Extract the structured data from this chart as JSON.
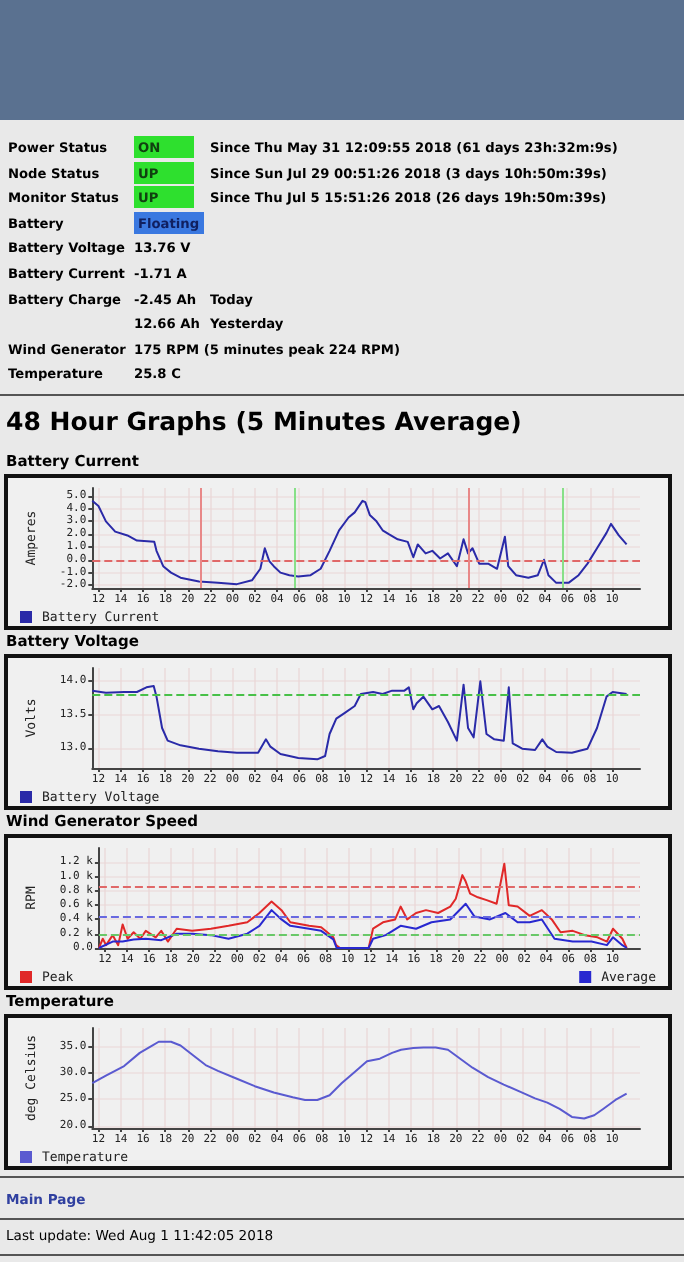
{
  "chart_data": [
    {
      "type": "other",
      "title": "48 Hour Graphs (5 Minutes Average)",
      "annotations": [
        "Power Status",
        "ON",
        "Since Thu May 31 12:09:55 2018 (61 days 23h:32m:9s)",
        "Node Status",
        "UP",
        "Since Sun Jul 29 00:51:26 2018 (3 days 10h:50m:39s)",
        "Monitor Status",
        "UP",
        "Since Thu Jul 5 15:51:26 2018 (26 days 19h:50m:39s)",
        "Battery",
        "Floating",
        "Battery Voltage",
        "13.76 V",
        "Battery Current",
        "-1.71 A",
        "Battery Charge",
        "-2.45 Ah",
        "Today",
        "12.66 Ah",
        "Yesterday",
        "Wind Generator",
        "175 RPM (5 minutes peak 224 RPM)",
        "Temperature",
        "25.8 C"
      ]
    },
    {
      "type": "line",
      "title": "Battery Current",
      "ylabel": "Amperes",
      "legend": "bottom",
      "grid": true,
      "xlim": [
        11.45,
        60.5
      ],
      "ylim": [
        -2.2,
        5.6
      ],
      "xticks": [
        {
          "value": 12,
          "label": "12"
        },
        {
          "value": 14,
          "label": "14"
        },
        {
          "value": 16,
          "label": "16"
        },
        {
          "value": 18,
          "label": "18"
        },
        {
          "value": 20,
          "label": "20"
        },
        {
          "value": 22,
          "label": "22"
        },
        {
          "value": 24,
          "label": "00"
        },
        {
          "value": 26,
          "label": "02"
        },
        {
          "value": 28,
          "label": "04"
        },
        {
          "value": 30,
          "label": "06"
        },
        {
          "value": 32,
          "label": "08"
        },
        {
          "value": 34,
          "label": "10"
        },
        {
          "value": 36,
          "label": "12"
        },
        {
          "value": 38,
          "label": "14"
        },
        {
          "value": 40,
          "label": "16"
        },
        {
          "value": 42,
          "label": "18"
        },
        {
          "value": 44,
          "label": "20"
        },
        {
          "value": 46,
          "label": "22"
        },
        {
          "value": 48,
          "label": "00"
        },
        {
          "value": 50,
          "label": "02"
        },
        {
          "value": 52,
          "label": "04"
        },
        {
          "value": 54,
          "label": "06"
        },
        {
          "value": 56,
          "label": "08"
        },
        {
          "value": 58,
          "label": "10"
        }
      ],
      "yticks": [
        {
          "value": -2,
          "label": "-2.0"
        },
        {
          "value": -1,
          "label": "-1.0"
        },
        {
          "value": 0,
          "label": "0.0"
        },
        {
          "value": 1,
          "label": "1.0"
        },
        {
          "value": 2,
          "label": "2.0"
        },
        {
          "value": 3,
          "label": "3.0"
        },
        {
          "value": 4,
          "label": "4.0"
        },
        {
          "value": 5,
          "label": "5.0"
        }
      ],
      "ref_lines": [
        {
          "axis": "y",
          "value": 0,
          "color": "#e06868",
          "line_style": "dashed"
        },
        {
          "axis": "x",
          "value": 21.2,
          "color": "#e88888",
          "line_style": "solid"
        },
        {
          "axis": "x",
          "value": 29.5,
          "color": "#88e088",
          "line_style": "solid"
        },
        {
          "axis": "x",
          "value": 45.1,
          "color": "#e88888",
          "line_style": "solid"
        },
        {
          "axis": "x",
          "value": 53.6,
          "color": "#88e088",
          "line_style": "solid"
        }
      ],
      "series": [
        {
          "name": "Battery Current",
          "color": "#2a2aa8",
          "x": [
            11.45,
            12,
            12.67,
            13.5,
            14.6,
            15.45,
            17,
            17.2,
            17.8,
            18.5,
            19.35,
            21,
            22.7,
            24.4,
            25.75,
            26.5,
            26.9,
            27.3,
            27.7,
            28.3,
            29.1,
            29.9,
            31,
            31.9,
            32.7,
            33.55,
            34.4,
            34.95,
            35.65,
            35.9,
            36.3,
            36.9,
            37.45,
            38,
            38.8,
            39.7,
            40.2,
            40.6,
            41.3,
            41.9,
            42.6,
            43.3,
            44.1,
            44.7,
            45.1,
            45.5,
            46.1,
            46.9,
            47.7,
            48.4,
            48.7,
            49.4,
            50.5,
            51.35,
            51.9,
            52.3,
            53,
            54.1,
            55,
            55.8,
            56.65,
            57.5,
            57.9,
            58.6,
            59.3
          ],
          "values": [
            4.6,
            4.2,
            3.0,
            2.2,
            1.9,
            1.5,
            1.4,
            0.7,
            -0.5,
            -1.0,
            -1.4,
            -1.7,
            -1.8,
            -1.9,
            -1.6,
            -0.7,
            0.9,
            -0.1,
            -0.5,
            -1.0,
            -1.2,
            -1.3,
            -1.2,
            -0.7,
            0.7,
            2.3,
            3.3,
            3.7,
            4.6,
            4.5,
            3.5,
            3.0,
            2.3,
            2.0,
            1.6,
            1.4,
            0.2,
            1.2,
            0.5,
            0.7,
            0.1,
            0.5,
            -0.5,
            1.6,
            0.5,
            0.9,
            -0.3,
            -0.3,
            -0.7,
            1.8,
            -0.5,
            -1.2,
            -1.4,
            -1.2,
            0.0,
            -1.2,
            -1.8,
            -1.8,
            -1.2,
            -0.3,
            0.9,
            2.1,
            2.8,
            1.9,
            1.2
          ]
        }
      ]
    },
    {
      "type": "line",
      "title": "Battery Voltage",
      "ylabel": "Volts",
      "legend": "bottom",
      "grid": true,
      "xlim": [
        11.45,
        60.5
      ],
      "ylim": [
        12.7,
        14.2
      ],
      "xticks": [
        {
          "value": 12,
          "label": "12"
        },
        {
          "value": 14,
          "label": "14"
        },
        {
          "value": 16,
          "label": "16"
        },
        {
          "value": 18,
          "label": "18"
        },
        {
          "value": 20,
          "label": "20"
        },
        {
          "value": 22,
          "label": "22"
        },
        {
          "value": 24,
          "label": "00"
        },
        {
          "value": 26,
          "label": "02"
        },
        {
          "value": 28,
          "label": "04"
        },
        {
          "value": 30,
          "label": "06"
        },
        {
          "value": 32,
          "label": "08"
        },
        {
          "value": 34,
          "label": "10"
        },
        {
          "value": 36,
          "label": "12"
        },
        {
          "value": 38,
          "label": "14"
        },
        {
          "value": 40,
          "label": "16"
        },
        {
          "value": 42,
          "label": "18"
        },
        {
          "value": 44,
          "label": "20"
        },
        {
          "value": 46,
          "label": "22"
        },
        {
          "value": 48,
          "label": "00"
        },
        {
          "value": 50,
          "label": "02"
        },
        {
          "value": 52,
          "label": "04"
        },
        {
          "value": 54,
          "label": "06"
        },
        {
          "value": 56,
          "label": "08"
        },
        {
          "value": 58,
          "label": "10"
        }
      ],
      "yticks": [
        {
          "value": 13,
          "label": "13.0"
        },
        {
          "value": 13.5,
          "label": "13.5"
        },
        {
          "value": 14,
          "label": "14.0"
        }
      ],
      "ref_lines": [
        {
          "axis": "y",
          "value": 13.8,
          "color": "#48c048",
          "line_style": "dashed"
        }
      ],
      "series": [
        {
          "name": "Battery Voltage",
          "color": "#2a2aa8",
          "x": [
            11.45,
            12.67,
            14.3,
            15.45,
            16.3,
            16.95,
            17.2,
            17.7,
            18.2,
            19.35,
            21,
            22.7,
            24.4,
            26.3,
            27,
            27.4,
            28.3,
            29.9,
            31.6,
            32.3,
            32.7,
            33.3,
            34.1,
            34.95,
            35.5,
            36.6,
            37.45,
            38.3,
            39.4,
            39.8,
            40.2,
            40.5,
            41.1,
            41.9,
            42.5,
            43.3,
            44.1,
            44.7,
            45.1,
            45.6,
            46.2,
            46.75,
            47.45,
            48.3,
            48.75,
            49.1,
            49.95,
            51.1,
            51.75,
            52.2,
            53,
            54.4,
            55.8,
            56.65,
            57.5,
            58.05,
            59.3
          ],
          "values": [
            13.86,
            13.83,
            13.84,
            13.84,
            13.91,
            13.93,
            13.77,
            13.3,
            13.11,
            13.04,
            12.99,
            12.95,
            12.93,
            12.93,
            13.13,
            13.02,
            12.91,
            12.85,
            12.83,
            12.88,
            13.21,
            13.44,
            13.53,
            13.63,
            13.81,
            13.84,
            13.81,
            13.86,
            13.86,
            13.91,
            13.58,
            13.67,
            13.77,
            13.58,
            13.63,
            13.39,
            13.11,
            13.95,
            13.3,
            13.16,
            14.0,
            13.21,
            13.13,
            13.11,
            13.91,
            13.07,
            12.99,
            12.97,
            13.13,
            13.02,
            12.94,
            12.93,
            12.99,
            13.3,
            13.77,
            13.84,
            13.81
          ]
        }
      ]
    },
    {
      "type": "line",
      "title": "Wind Generator Speed",
      "ylabel": "RPM",
      "legend": "bottom",
      "grid": true,
      "xlim": [
        11.45,
        60.5
      ],
      "ylim": [
        0,
        1400
      ],
      "xticks": [
        {
          "value": 12,
          "label": "12"
        },
        {
          "value": 14,
          "label": "14"
        },
        {
          "value": 16,
          "label": "16"
        },
        {
          "value": 18,
          "label": "18"
        },
        {
          "value": 20,
          "label": "20"
        },
        {
          "value": 22,
          "label": "22"
        },
        {
          "value": 24,
          "label": "00"
        },
        {
          "value": 26,
          "label": "02"
        },
        {
          "value": 28,
          "label": "04"
        },
        {
          "value": 30,
          "label": "06"
        },
        {
          "value": 32,
          "label": "08"
        },
        {
          "value": 34,
          "label": "10"
        },
        {
          "value": 36,
          "label": "12"
        },
        {
          "value": 38,
          "label": "14"
        },
        {
          "value": 40,
          "label": "16"
        },
        {
          "value": 42,
          "label": "18"
        },
        {
          "value": 44,
          "label": "20"
        },
        {
          "value": 46,
          "label": "22"
        },
        {
          "value": 48,
          "label": "00"
        },
        {
          "value": 50,
          "label": "02"
        },
        {
          "value": 52,
          "label": "04"
        },
        {
          "value": 54,
          "label": "06"
        },
        {
          "value": 56,
          "label": "08"
        },
        {
          "value": 58,
          "label": "10"
        }
      ],
      "yticks": [
        {
          "value": 0,
          "label": "0.0"
        },
        {
          "value": 200,
          "label": "0.2 k"
        },
        {
          "value": 400,
          "label": "0.4 k"
        },
        {
          "value": 600,
          "label": "0.6 k"
        },
        {
          "value": 800,
          "label": "0.8 k"
        },
        {
          "value": 1000,
          "label": "1.0 k"
        },
        {
          "value": 1200,
          "label": "1.2 k"
        }
      ],
      "ref_lines": [
        {
          "axis": "y",
          "value": 870,
          "color": "#e06868",
          "line_style": "dashed"
        },
        {
          "axis": "y",
          "value": 430,
          "color": "#6868e0",
          "line_style": "dashed"
        },
        {
          "axis": "y",
          "value": 200,
          "color": "#68c868",
          "line_style": "dashed"
        }
      ],
      "series": [
        {
          "name": "Peak",
          "color": "#e02828",
          "x": [
            11.45,
            11.8,
            12.1,
            12.7,
            13.2,
            13.6,
            14.05,
            14.6,
            15.2,
            15.7,
            16.6,
            17.1,
            17.7,
            18.5,
            19.9,
            21.6,
            23.2,
            24.9,
            26,
            27.1,
            28,
            28.8,
            30.5,
            31.6,
            32.7,
            32.95,
            33.3,
            35.9,
            36.3,
            37.2,
            38.3,
            38.8,
            39.4,
            40.2,
            41.1,
            42.2,
            43.3,
            43.8,
            44.4,
            44.7,
            45.1,
            45.8,
            46.6,
            47.5,
            48.2,
            48.6,
            49.4,
            50.5,
            51.6,
            52.5,
            53.3,
            54.4,
            55.5,
            56.65,
            57.5,
            58.05,
            58.9,
            59.3
          ],
          "values": [
            0,
            130,
            40,
            180,
            40,
            330,
            130,
            220,
            130,
            240,
            150,
            240,
            90,
            270,
            240,
            270,
            310,
            360,
            490,
            650,
            530,
            360,
            310,
            290,
            150,
            40,
            0,
            0,
            270,
            360,
            400,
            580,
            400,
            490,
            530,
            490,
            580,
            690,
            1020,
            930,
            760,
            710,
            670,
            620,
            1180,
            600,
            580,
            450,
            530,
            400,
            220,
            240,
            180,
            150,
            90,
            270,
            130,
            0
          ]
        },
        {
          "name": "Average",
          "color": "#2828d0",
          "x": [
            11.45,
            12.7,
            13.6,
            14.6,
            15.7,
            17.1,
            18.5,
            19.9,
            21.6,
            23.2,
            24.9,
            26,
            27.1,
            28,
            28.8,
            30.5,
            31.6,
            32.7,
            33,
            35.9,
            36.3,
            37.45,
            38.8,
            40.2,
            41.6,
            43.3,
            44.7,
            45.5,
            46.9,
            48.3,
            49.4,
            50.5,
            51.6,
            52.75,
            54.4,
            56.1,
            57.5,
            58.05,
            58.9,
            59.3
          ],
          "values": [
            0,
            90,
            90,
            120,
            130,
            110,
            200,
            200,
            180,
            130,
            200,
            310,
            530,
            400,
            310,
            270,
            240,
            120,
            0,
            0,
            130,
            180,
            310,
            270,
            360,
            400,
            620,
            440,
            400,
            490,
            360,
            360,
            400,
            130,
            90,
            90,
            40,
            150,
            40,
            0
          ]
        }
      ]
    },
    {
      "type": "line",
      "title": "Temperature",
      "ylabel": "deg Celsius",
      "legend": "bottom",
      "grid": true,
      "xlim": [
        11.45,
        60.5
      ],
      "ylim": [
        19.6,
        38.5
      ],
      "xticks": [
        {
          "value": 12,
          "label": "12"
        },
        {
          "value": 14,
          "label": "14"
        },
        {
          "value": 16,
          "label": "16"
        },
        {
          "value": 18,
          "label": "18"
        },
        {
          "value": 20,
          "label": "20"
        },
        {
          "value": 22,
          "label": "22"
        },
        {
          "value": 24,
          "label": "00"
        },
        {
          "value": 26,
          "label": "02"
        },
        {
          "value": 28,
          "label": "04"
        },
        {
          "value": 30,
          "label": "06"
        },
        {
          "value": 32,
          "label": "08"
        },
        {
          "value": 34,
          "label": "10"
        },
        {
          "value": 36,
          "label": "12"
        },
        {
          "value": 38,
          "label": "14"
        },
        {
          "value": 40,
          "label": "16"
        },
        {
          "value": 42,
          "label": "18"
        },
        {
          "value": 44,
          "label": "20"
        },
        {
          "value": 46,
          "label": "22"
        },
        {
          "value": 48,
          "label": "00"
        },
        {
          "value": 50,
          "label": "02"
        },
        {
          "value": 52,
          "label": "04"
        },
        {
          "value": 54,
          "label": "06"
        },
        {
          "value": 56,
          "label": "08"
        },
        {
          "value": 58,
          "label": "10"
        }
      ],
      "yticks": [
        {
          "value": 20,
          "label": "20.0"
        },
        {
          "value": 25,
          "label": "25.0"
        },
        {
          "value": 30,
          "label": "30.0"
        },
        {
          "value": 35,
          "label": "35.0"
        }
      ],
      "series": [
        {
          "name": "Temperature",
          "color": "#5a5ad0",
          "x": [
            11.45,
            12.67,
            14.3,
            15.7,
            16.85,
            17.4,
            18.5,
            19.35,
            20.5,
            21.6,
            22.7,
            24.4,
            26,
            27.7,
            29.4,
            30.5,
            31.6,
            32.7,
            33.8,
            34.95,
            36.05,
            37.2,
            38.3,
            39.1,
            40.2,
            41.1,
            42.2,
            43.3,
            44.4,
            45.5,
            46.9,
            48.3,
            49.95,
            51.1,
            52.2,
            53.3,
            54.4,
            55.5,
            56.4,
            57.2,
            58.3,
            59.3
          ],
          "values": [
            28.1,
            29.5,
            31.3,
            33.8,
            35.2,
            35.9,
            35.9,
            35.2,
            33.3,
            31.5,
            30.4,
            28.9,
            27.5,
            26.3,
            25.4,
            24.9,
            24.9,
            25.8,
            28.1,
            30.2,
            32.2,
            32.7,
            33.8,
            34.4,
            34.7,
            34.8,
            34.8,
            34.4,
            32.7,
            31.0,
            29.2,
            27.8,
            26.3,
            25.2,
            24.4,
            23.2,
            21.7,
            21.4,
            22.0,
            23.2,
            24.9,
            26.1
          ]
        }
      ]
    },
    {
      "type": "other",
      "annotations": [
        "Main Page",
        "Last update: Wed Aug 1 11:42:05 2018"
      ]
    }
  ]
}
